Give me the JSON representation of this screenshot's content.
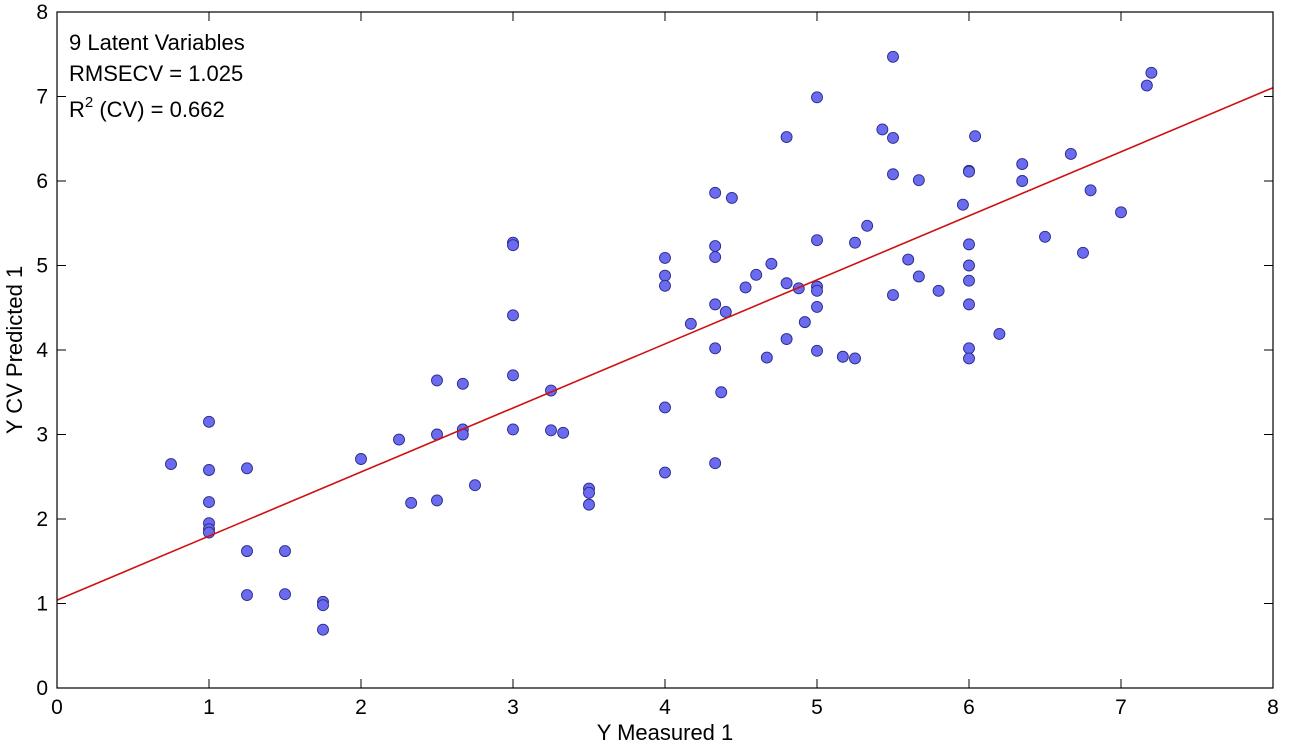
{
  "chart_data": {
    "type": "scatter",
    "xlabel": "Y Measured 1",
    "ylabel": "Y CV Predicted 1",
    "xlim": [
      0,
      8
    ],
    "ylim": [
      0,
      8
    ],
    "xticks": [
      "0",
      "1",
      "2",
      "3",
      "4",
      "5",
      "6",
      "7",
      "8"
    ],
    "yticks": [
      "0",
      "1",
      "2",
      "3",
      "4",
      "5",
      "6",
      "7",
      "8"
    ],
    "grid": false,
    "annotations": {
      "line1": "9 Latent Variables",
      "line2": "RMSECV = 1.025",
      "line3_prefix": "R",
      "line3_sup": "2",
      "line3_suffix": " (CV) = 0.662"
    },
    "fit_line": {
      "color": "#d01010",
      "intercept": 1.04,
      "slope": 0.758
    },
    "marker_color": "#6b6bef",
    "points": [
      [
        0.75,
        2.65
      ],
      [
        1.0,
        3.15
      ],
      [
        1.0,
        2.58
      ],
      [
        1.0,
        2.2
      ],
      [
        1.0,
        1.95
      ],
      [
        1.0,
        1.88
      ],
      [
        1.0,
        1.84
      ],
      [
        1.25,
        2.6
      ],
      [
        1.25,
        1.62
      ],
      [
        1.25,
        1.1
      ],
      [
        1.5,
        1.62
      ],
      [
        1.5,
        1.11
      ],
      [
        1.75,
        1.02
      ],
      [
        1.75,
        0.98
      ],
      [
        1.75,
        0.69
      ],
      [
        2.0,
        2.71
      ],
      [
        2.25,
        2.94
      ],
      [
        2.33,
        2.19
      ],
      [
        2.5,
        3.64
      ],
      [
        2.5,
        3.0
      ],
      [
        2.5,
        2.22
      ],
      [
        2.67,
        3.6
      ],
      [
        2.67,
        3.06
      ],
      [
        2.67,
        3.0
      ],
      [
        2.75,
        2.4
      ],
      [
        3.0,
        5.27
      ],
      [
        3.0,
        5.24
      ],
      [
        3.0,
        4.41
      ],
      [
        3.0,
        3.7
      ],
      [
        3.0,
        3.06
      ],
      [
        3.25,
        3.52
      ],
      [
        3.25,
        3.05
      ],
      [
        3.33,
        3.02
      ],
      [
        3.5,
        2.36
      ],
      [
        3.5,
        2.31
      ],
      [
        3.5,
        2.17
      ],
      [
        4.0,
        5.09
      ],
      [
        4.0,
        4.88
      ],
      [
        4.0,
        4.76
      ],
      [
        4.0,
        3.32
      ],
      [
        4.0,
        2.55
      ],
      [
        4.17,
        4.31
      ],
      [
        4.33,
        5.86
      ],
      [
        4.33,
        5.23
      ],
      [
        4.33,
        5.1
      ],
      [
        4.33,
        4.54
      ],
      [
        4.33,
        4.02
      ],
      [
        4.33,
        2.66
      ],
      [
        4.37,
        3.5
      ],
      [
        4.4,
        4.45
      ],
      [
        4.44,
        5.8
      ],
      [
        4.53,
        4.74
      ],
      [
        4.6,
        4.89
      ],
      [
        4.67,
        3.91
      ],
      [
        4.7,
        5.02
      ],
      [
        4.8,
        6.52
      ],
      [
        4.8,
        4.79
      ],
      [
        4.8,
        4.13
      ],
      [
        4.88,
        4.73
      ],
      [
        4.92,
        4.33
      ],
      [
        5.0,
        6.99
      ],
      [
        5.0,
        5.3
      ],
      [
        5.0,
        4.75
      ],
      [
        5.0,
        4.7
      ],
      [
        5.0,
        4.51
      ],
      [
        5.0,
        3.99
      ],
      [
        5.17,
        3.92
      ],
      [
        5.25,
        5.27
      ],
      [
        5.25,
        3.9
      ],
      [
        5.33,
        5.47
      ],
      [
        5.43,
        6.61
      ],
      [
        5.5,
        7.47
      ],
      [
        5.5,
        6.51
      ],
      [
        5.5,
        6.08
      ],
      [
        5.5,
        4.65
      ],
      [
        5.6,
        5.07
      ],
      [
        5.67,
        6.01
      ],
      [
        5.67,
        4.87
      ],
      [
        5.8,
        4.7
      ],
      [
        5.96,
        5.72
      ],
      [
        6.0,
        6.12
      ],
      [
        6.0,
        6.11
      ],
      [
        6.0,
        5.25
      ],
      [
        6.0,
        5.0
      ],
      [
        6.0,
        4.82
      ],
      [
        6.0,
        4.54
      ],
      [
        6.0,
        4.02
      ],
      [
        6.0,
        3.9
      ],
      [
        6.04,
        6.53
      ],
      [
        6.2,
        4.19
      ],
      [
        6.35,
        6.2
      ],
      [
        6.35,
        6.0
      ],
      [
        6.5,
        5.34
      ],
      [
        6.67,
        6.32
      ],
      [
        6.75,
        5.15
      ],
      [
        6.8,
        5.89
      ],
      [
        7.0,
        5.63
      ],
      [
        7.17,
        7.13
      ],
      [
        7.2,
        7.28
      ]
    ]
  }
}
